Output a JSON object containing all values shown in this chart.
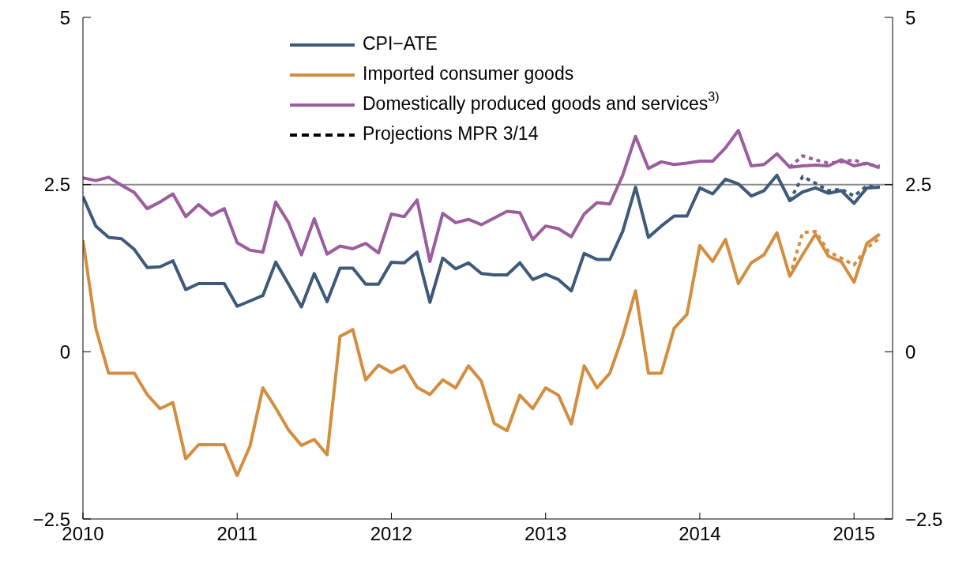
{
  "chart_data": {
    "type": "line",
    "x": [
      "2010-01",
      "2010-02",
      "2010-03",
      "2010-04",
      "2010-05",
      "2010-06",
      "2010-07",
      "2010-08",
      "2010-09",
      "2010-10",
      "2010-11",
      "2010-12",
      "2011-01",
      "2011-02",
      "2011-03",
      "2011-04",
      "2011-05",
      "2011-06",
      "2011-07",
      "2011-08",
      "2011-09",
      "2011-10",
      "2011-11",
      "2011-12",
      "2012-01",
      "2012-02",
      "2012-03",
      "2012-04",
      "2012-05",
      "2012-06",
      "2012-07",
      "2012-08",
      "2012-09",
      "2012-10",
      "2012-11",
      "2012-12",
      "2013-01",
      "2013-02",
      "2013-03",
      "2013-04",
      "2013-05",
      "2013-06",
      "2013-07",
      "2013-08",
      "2013-09",
      "2013-10",
      "2013-11",
      "2013-12",
      "2014-01",
      "2014-02",
      "2014-03",
      "2014-04",
      "2014-05",
      "2014-06",
      "2014-07",
      "2014-08",
      "2014-09",
      "2014-10",
      "2014-11",
      "2014-12",
      "2015-01",
      "2015-02",
      "2015-03"
    ],
    "series": [
      {
        "name": "CPI−ATE",
        "color": "#3d5a7a",
        "values": [
          2.32,
          1.88,
          1.71,
          1.69,
          1.53,
          1.26,
          1.27,
          1.36,
          0.93,
          1.02,
          1.02,
          1.02,
          0.68,
          0.76,
          0.84,
          1.34,
          1.01,
          0.67,
          1.17,
          0.75,
          1.25,
          1.25,
          1.01,
          1.01,
          1.34,
          1.33,
          1.49,
          0.74,
          1.4,
          1.24,
          1.33,
          1.17,
          1.15,
          1.15,
          1.33,
          1.08,
          1.16,
          1.08,
          0.91,
          1.47,
          1.38,
          1.38,
          1.8,
          2.46,
          1.71,
          1.88,
          2.03,
          2.03,
          2.45,
          2.36,
          2.58,
          2.51,
          2.33,
          2.41,
          2.64,
          2.26,
          2.39,
          2.45,
          2.37,
          2.41,
          2.22,
          2.45,
          2.46
        ]
      },
      {
        "name": "Imported consumer goods",
        "color": "#d38d3f",
        "values": [
          1.67,
          0.35,
          -0.32,
          -0.32,
          -0.32,
          -0.64,
          -0.85,
          -0.76,
          -1.6,
          -1.39,
          -1.39,
          -1.39,
          -1.85,
          -1.41,
          -0.54,
          -0.84,
          -1.17,
          -1.4,
          -1.31,
          -1.54,
          0.23,
          0.33,
          -0.42,
          -0.2,
          -0.31,
          -0.21,
          -0.53,
          -0.64,
          -0.42,
          -0.54,
          -0.21,
          -0.44,
          -1.07,
          -1.18,
          -0.65,
          -0.85,
          -0.54,
          -0.65,
          -1.08,
          -0.21,
          -0.54,
          -0.32,
          0.23,
          0.91,
          -0.32,
          -0.32,
          0.35,
          0.56,
          1.59,
          1.35,
          1.68,
          1.02,
          1.33,
          1.45,
          1.78,
          1.13,
          1.45,
          1.76,
          1.43,
          1.35,
          1.04,
          1.62,
          1.76
        ]
      },
      {
        "name": "Domestically produced goods and services$^{3)}$",
        "color": "#9b5d9e",
        "values": [
          2.6,
          2.56,
          2.61,
          2.49,
          2.38,
          2.14,
          2.24,
          2.36,
          2.02,
          2.2,
          2.04,
          2.14,
          1.63,
          1.52,
          1.49,
          2.24,
          1.93,
          1.45,
          1.99,
          1.46,
          1.58,
          1.54,
          1.62,
          1.48,
          2.06,
          2.02,
          2.27,
          1.35,
          2.07,
          1.93,
          1.98,
          1.9,
          2.0,
          2.1,
          2.08,
          1.68,
          1.88,
          1.84,
          1.72,
          2.06,
          2.23,
          2.21,
          2.64,
          3.22,
          2.74,
          2.84,
          2.8,
          2.82,
          2.85,
          2.85,
          3.05,
          3.31,
          2.78,
          2.8,
          2.96,
          2.76,
          2.78,
          2.79,
          2.78,
          2.87,
          2.78,
          2.82,
          2.75
        ]
      },
      {
        "name": "Projections MPR 3/14",
        "color": "#000000",
        "line_style": "dotted",
        "values": [
          null,
          null,
          null,
          null,
          null,
          null,
          null,
          null,
          null,
          null,
          null,
          null,
          null,
          null,
          null,
          null,
          null,
          null,
          null,
          null,
          null,
          null,
          null,
          null,
          null,
          null,
          null,
          null,
          null,
          null,
          null,
          null,
          null,
          null,
          null,
          null,
          null,
          null,
          null,
          null,
          null,
          null,
          null,
          null,
          null,
          null,
          null,
          null,
          null,
          null,
          null,
          null,
          null,
          null,
          null,
          null,
          null,
          null,
          null,
          null,
          null,
          null,
          null
        ]
      },
      {
        "color": "#3d5a7a",
        "line_style": "dotted",
        "x": [
          "2014-08",
          "2014-09",
          "2014-10",
          "2014-11",
          "2014-12",
          "2015-01",
          "2015-02",
          "2015-03"
        ],
        "values": [
          2.26,
          2.62,
          2.52,
          2.41,
          2.43,
          2.33,
          2.48,
          2.46
        ]
      },
      {
        "color": "#d38d3f",
        "line_style": "dotted",
        "x": [
          "2014-08",
          "2014-09",
          "2014-10",
          "2014-11",
          "2014-12",
          "2015-01",
          "2015-02",
          "2015-03"
        ],
        "values": [
          1.13,
          1.78,
          1.8,
          1.5,
          1.4,
          1.3,
          1.55,
          1.7
        ]
      },
      {
        "color": "#9b5d9e",
        "line_style": "dotted",
        "x": [
          "2014-08",
          "2014-09",
          "2014-10",
          "2014-11",
          "2014-12",
          "2015-01",
          "2015-02",
          "2015-03"
        ],
        "values": [
          2.76,
          2.93,
          2.87,
          2.82,
          2.84,
          2.87,
          2.8,
          2.78
        ]
      }
    ],
    "xlim": [
      "2010-01",
      "2015-04"
    ],
    "xticks": [
      {
        "value": "2010",
        "label": "2010"
      },
      {
        "value": "2011",
        "label": "2011"
      },
      {
        "value": "2012",
        "label": "2012"
      },
      {
        "value": "2013",
        "label": "2013"
      },
      {
        "value": "2014",
        "label": "2014"
      },
      {
        "value": "2015",
        "label": "2015"
      }
    ],
    "ylim": [
      -2.5,
      5
    ],
    "yticks": [
      {
        "value": -2.5,
        "label": "−2.5"
      },
      0,
      2.5,
      5
    ],
    "y2lim": [
      -2.5,
      5
    ],
    "y2ticks": [
      {
        "value": -2.5,
        "label": "−2.5"
      },
      0,
      2.5,
      5
    ],
    "ref_lines": [
      {
        "axis": "y",
        "value": 2.5,
        "color": "#8c8c8c"
      }
    ],
    "legend": "top",
    "grid": false
  }
}
